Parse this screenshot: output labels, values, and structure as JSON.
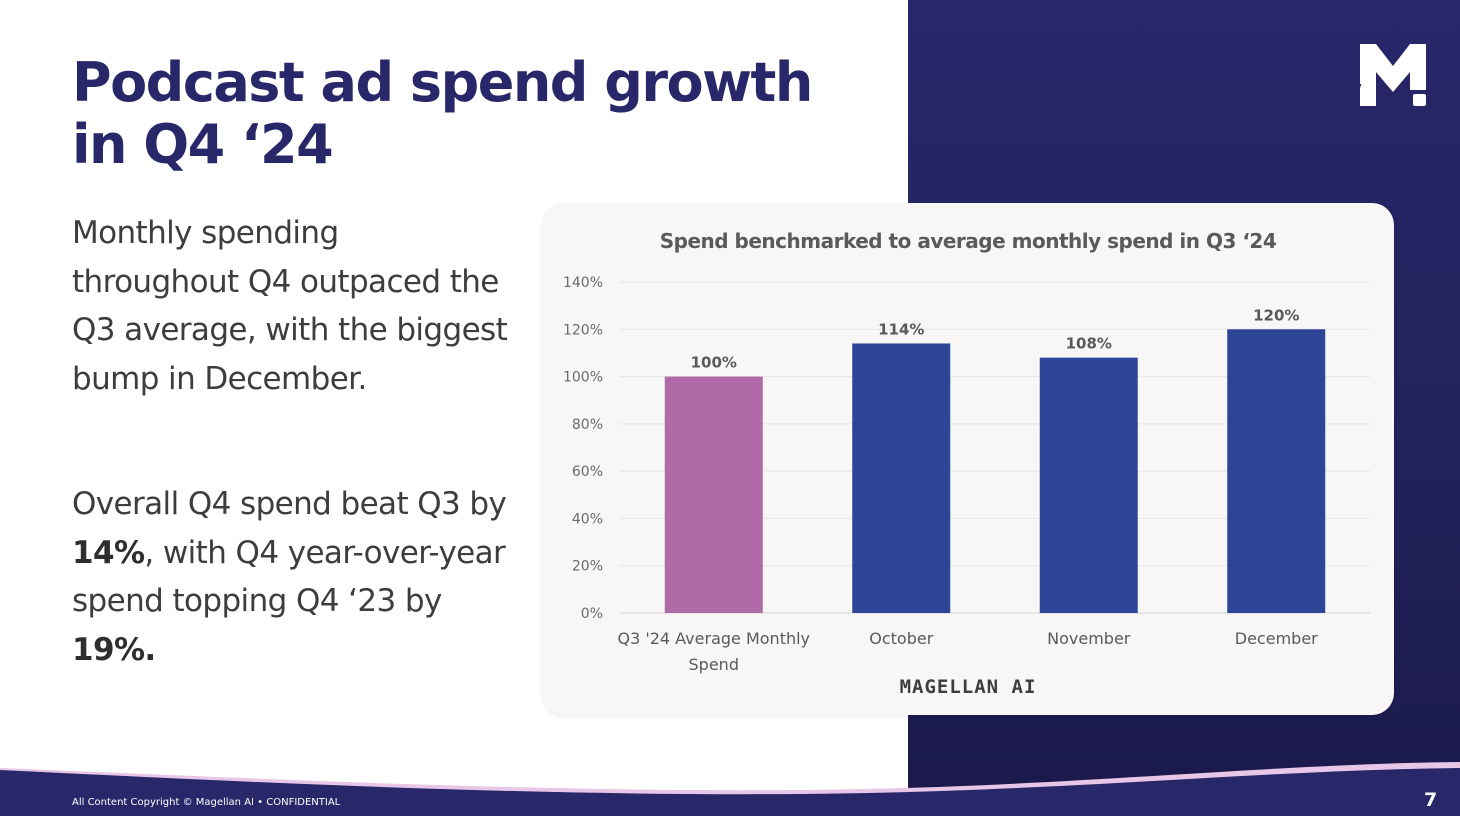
{
  "slide": {
    "title": "Podcast ad spend growth in Q4 ‘24",
    "paragraph1": "Monthly spending throughout Q4 outpaced the Q3 average, with the biggest bump in December.",
    "paragraph2": {
      "p1": "Overall Q4 spend beat Q3 by ",
      "b1": "14%",
      "p2": ", with Q4 year-over-year spend topping Q4 ‘23 by ",
      "b2": "19%."
    },
    "source": "MAGELLAN AI",
    "footer": "All Content Copyright © Magellan AI • CONFIDENTIAL",
    "page_number": "7"
  },
  "colors": {
    "navy": "#27276a",
    "baseline_bar": "#b06aa8",
    "month_bar": "#2e4496",
    "wave_pink": "#e7c6e7"
  },
  "chart_data": {
    "type": "bar",
    "title": "Spend benchmarked to average monthly spend in Q3 ‘24",
    "categories": [
      "Q3 '24 Average Monthly Spend",
      "October",
      "November",
      "December"
    ],
    "category_lines": [
      [
        "Q3 '24 Average Monthly",
        "Spend"
      ],
      [
        "October"
      ],
      [
        "November"
      ],
      [
        "December"
      ]
    ],
    "values": [
      100,
      114,
      108,
      120
    ],
    "data_labels": [
      "100%",
      "114%",
      "108%",
      "120%"
    ],
    "bar_colors": [
      "#b06aa8",
      "#2e4496",
      "#2e4496",
      "#2e4496"
    ],
    "ylim": [
      0,
      140
    ],
    "yticks": [
      0,
      20,
      40,
      60,
      80,
      100,
      120,
      140
    ],
    "ytick_labels": [
      "0%",
      "20%",
      "40%",
      "60%",
      "80%",
      "100%",
      "120%",
      "140%"
    ],
    "grid": true,
    "xlabel": "",
    "ylabel": ""
  }
}
